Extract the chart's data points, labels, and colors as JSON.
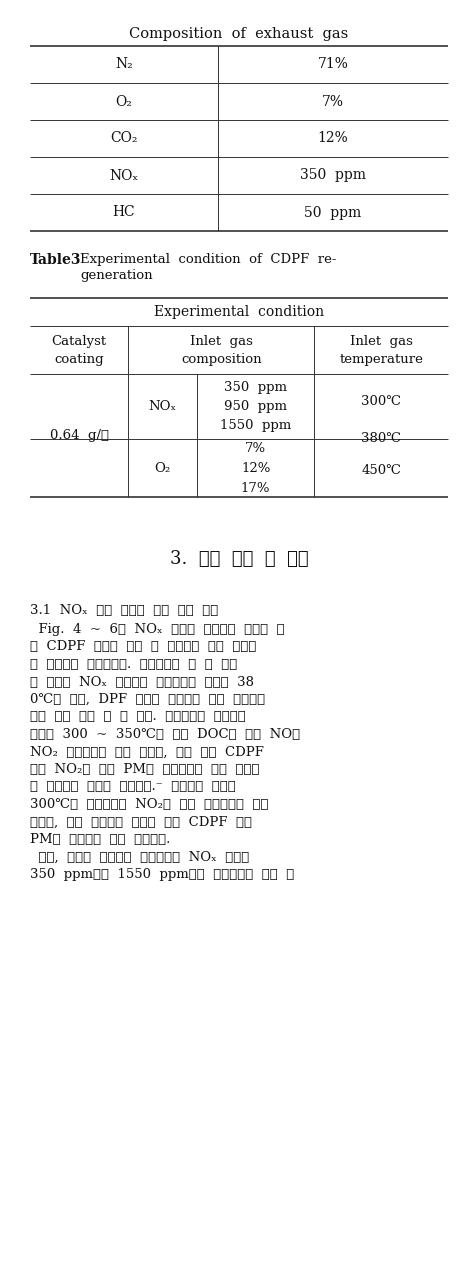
{
  "bg_color": "#ffffff",
  "table1_title": "Composition  of  exhaust  gas",
  "table1_rows": [
    [
      "N₂",
      "71%"
    ],
    [
      "O₂",
      "7%"
    ],
    [
      "CO₂",
      "12%"
    ],
    [
      "NOₓ",
      "350  ppm"
    ],
    [
      "HC",
      "50  ppm"
    ]
  ],
  "table3_label": "Table3",
  "table3_caption_line1": "Experimental  condition  of  CDPF  re-",
  "table3_caption_line2": "generation",
  "table2_header": "Experimental  condition",
  "col1_header": "Catalyst\ncoating",
  "col2_header": "Inlet  gas\ncomposition",
  "col3_header": "Inlet  gas\ntemperature",
  "catalyst_coating": "0.64  g/ℓ",
  "nox_label": "NOₓ",
  "nox_values": "350  ppm\n950  ppm\n1550  ppm",
  "o2_label": "O₂",
  "o2_values": "7%\n12%\n17%",
  "temp_300": "300℃",
  "temp_380": "380℃",
  "temp_450": "450℃",
  "section_title": "3.  실험  결과  및  고찰",
  "para1_title": "3.1  NOₓ  농도  변화에  따른  재생  특성",
  "body_lines": [
    "  Fig.  4  ~  6는  NOₓ  농도와  배기가스  온도에  따",
    "른  CDPF  후단의  재생  중  배기가스  온도  변화량",
    "을  나타내는  그래프이다.  그래프에서  볼  수  있듯",
    "이  각각의  NOₓ  농도에서  배기가스의  온도가  38",
    "0℃일  경우,  DPF  후단의  배기가스  온도  변화량이",
    "가장  높은  것을  알  수  있다.  일반적으로  배기가스",
    "온도가  300  ~  350℃일  경우  DOC에  의한  NO의",
    "NO₂  변환효율이  가장  높으며,  이로  인해  CDPF",
    "내의  NO₂에  의한  PM의  산화반응이  가장  활발하",
    "게  일어나는  것으로  판단된다.⁻  배기가스  온도가",
    "300℃인  조건에서는  NO₂의  양은  재생조건을  충족",
    "시키나,  낙은  배기가스  온도로  인해  CDPF  내의",
    "PM의  산화량은  적게  나타났다.",
    "  또한,  각각의  그래프를  비교해보면  NOₓ  농도가",
    "350  ppm에서  1550  ppm으로  증가할수록  재생  시"
  ],
  "line_note": "(7)"
}
